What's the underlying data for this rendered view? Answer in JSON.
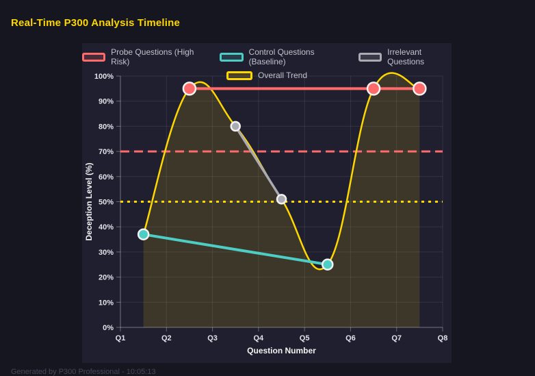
{
  "title": "Real-Time P300 Analysis Timeline",
  "footer": "Generated by P300 Professional - 10:05:13",
  "colors": {
    "page_bg": "#161620",
    "card_bg": "#1f1f30",
    "title": "#ffd700",
    "grid": "rgba(255,255,255,0.09)",
    "axis": "rgba(255,255,255,0.32)",
    "tick_text": "#e2e2e8",
    "legend_text": "#c2c2cc",
    "point_border": "#f2f2f2"
  },
  "chart_data": {
    "type": "line",
    "xlabel": "Question Number",
    "ylabel": "Deception Level (%)",
    "x_ticks": [
      "Q1",
      "Q2",
      "Q3",
      "Q4",
      "Q5",
      "Q6",
      "Q7",
      "Q8"
    ],
    "x_range": [
      1,
      8
    ],
    "y_ticks": [
      "0%",
      "10%",
      "20%",
      "30%",
      "40%",
      "50%",
      "60%",
      "70%",
      "80%",
      "90%",
      "100%"
    ],
    "y_range": [
      0,
      100
    ],
    "grid": true,
    "legend_position": "top",
    "series": [
      {
        "name": "Probe Questions (High Risk)",
        "color": "#ff6b6b",
        "line_width": 4,
        "point_radius": 9,
        "points": [
          [
            2.5,
            95
          ],
          [
            6.5,
            95
          ],
          [
            7.5,
            95
          ]
        ]
      },
      {
        "name": "Control Questions (Baseline)",
        "color": "#4ecdc4",
        "line_width": 4,
        "point_radius": 7.5,
        "points": [
          [
            1.5,
            37
          ],
          [
            5.5,
            25
          ]
        ]
      },
      {
        "name": "Irrelevant Questions",
        "color": "#aaaab2",
        "line_width": 3.5,
        "point_radius": 6.5,
        "points": [
          [
            3.5,
            80
          ],
          [
            4.5,
            51
          ]
        ]
      },
      {
        "name": "Overall Trend",
        "color": "#ffd700",
        "line_width": 2.5,
        "point_radius": 0,
        "smooth": true,
        "fill": "rgba(255,215,0,0.13)",
        "points": [
          [
            1.5,
            37
          ],
          [
            2.5,
            95
          ],
          [
            3.5,
            80
          ],
          [
            4.5,
            51
          ],
          [
            5.5,
            25
          ],
          [
            6.5,
            95
          ],
          [
            7.5,
            95
          ]
        ]
      }
    ],
    "thresholds": [
      {
        "value": 70,
        "color": "#ff6b6b",
        "style": "dashed"
      },
      {
        "value": 50,
        "color": "#ffd700",
        "style": "dotted"
      }
    ]
  }
}
